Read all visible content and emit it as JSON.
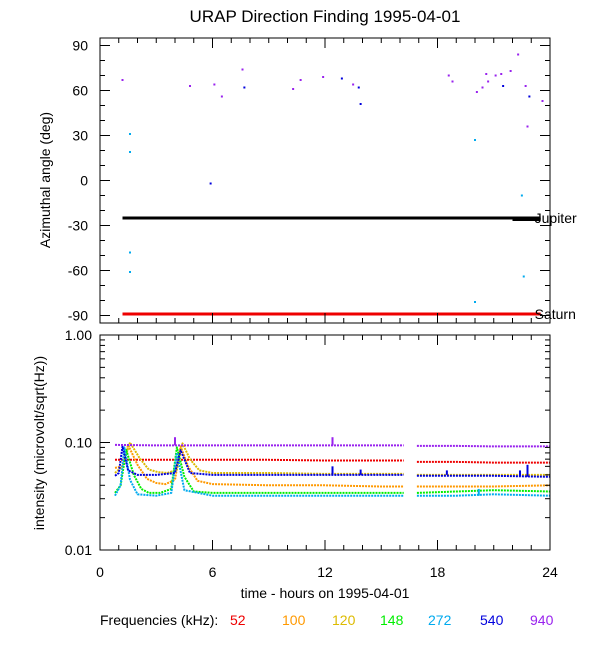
{
  "title": "URAP Direction Finding  1995-04-01",
  "xlabel": "time - hours on 1995-04-01",
  "freq_legend_label": "Frequencies (kHz):",
  "series_colors": {
    "52": "#ee0000",
    "100": "#ff9900",
    "120": "#ddbb00",
    "148": "#00ee00",
    "272": "#00aaee",
    "540": "#0000dd",
    "940": "#9922ee"
  },
  "chart_data": [
    {
      "type": "scatter",
      "xlim": [
        0,
        24
      ],
      "ylim": [
        -95,
        95
      ],
      "ylabel": "Azimuthal angle (deg)",
      "x_ticks": [
        0,
        6,
        12,
        18,
        24
      ],
      "y_ticks": [
        90,
        60,
        30,
        0,
        -30,
        -60,
        -90
      ],
      "y_tick_labels": [
        "90",
        "60",
        "30",
        "0",
        "-30",
        "-60",
        "-90"
      ],
      "reference_lines": [
        {
          "label": "Jupiter",
          "x": [
            1.2,
            23.5
          ],
          "y": [
            -25,
            -25
          ],
          "y_end": -26,
          "color": "#000000"
        },
        {
          "label": "Saturn",
          "x": [
            1.2,
            23.5
          ],
          "y": [
            -89,
            -89
          ],
          "color": "#ee0000"
        }
      ],
      "points": [
        {
          "x": 1.2,
          "y": 67,
          "f": "940"
        },
        {
          "x": 1.6,
          "y": 31,
          "f": "272"
        },
        {
          "x": 1.6,
          "y": 19,
          "f": "272"
        },
        {
          "x": 1.6,
          "y": -48,
          "f": "272"
        },
        {
          "x": 1.6,
          "y": -61,
          "f": "272"
        },
        {
          "x": 4.8,
          "y": 63,
          "f": "940"
        },
        {
          "x": 5.9,
          "y": -2,
          "f": "540"
        },
        {
          "x": 6.1,
          "y": 64,
          "f": "940"
        },
        {
          "x": 6.5,
          "y": 56,
          "f": "940"
        },
        {
          "x": 7.6,
          "y": 74,
          "f": "940"
        },
        {
          "x": 7.7,
          "y": 62,
          "f": "540"
        },
        {
          "x": 10.3,
          "y": 61,
          "f": "940"
        },
        {
          "x": 10.7,
          "y": 67,
          "f": "940"
        },
        {
          "x": 11.9,
          "y": 69,
          "f": "940"
        },
        {
          "x": 12.9,
          "y": 68,
          "f": "540"
        },
        {
          "x": 13.5,
          "y": 64,
          "f": "940"
        },
        {
          "x": 13.8,
          "y": 62,
          "f": "540"
        },
        {
          "x": 13.9,
          "y": 51,
          "f": "540"
        },
        {
          "x": 18.6,
          "y": 70,
          "f": "940"
        },
        {
          "x": 18.8,
          "y": 66,
          "f": "940"
        },
        {
          "x": 20.0,
          "y": 27,
          "f": "272"
        },
        {
          "x": 20.0,
          "y": -81,
          "f": "272"
        },
        {
          "x": 20.1,
          "y": 59,
          "f": "940"
        },
        {
          "x": 20.4,
          "y": 62,
          "f": "940"
        },
        {
          "x": 20.6,
          "y": 71,
          "f": "940"
        },
        {
          "x": 20.7,
          "y": 66,
          "f": "940"
        },
        {
          "x": 21.1,
          "y": 70,
          "f": "940"
        },
        {
          "x": 21.4,
          "y": 71,
          "f": "940"
        },
        {
          "x": 21.5,
          "y": 63,
          "f": "540"
        },
        {
          "x": 21.9,
          "y": 73,
          "f": "940"
        },
        {
          "x": 22.3,
          "y": 84,
          "f": "940"
        },
        {
          "x": 22.5,
          "y": -10,
          "f": "272"
        },
        {
          "x": 22.6,
          "y": -64,
          "f": "272"
        },
        {
          "x": 22.7,
          "y": 63,
          "f": "940"
        },
        {
          "x": 22.8,
          "y": 36,
          "f": "940"
        },
        {
          "x": 22.9,
          "y": 56,
          "f": "540"
        },
        {
          "x": 23.6,
          "y": 53,
          "f": "940"
        }
      ]
    },
    {
      "type": "line",
      "xlim": [
        0,
        24
      ],
      "ylim": [
        0.01,
        1.0
      ],
      "yscale": "log",
      "ylabel": "intensity (microvolt/sqrt(Hz))",
      "x_ticks": [
        0,
        6,
        12,
        18,
        24
      ],
      "x_tick_labels": [
        "0",
        "6",
        "12",
        "18",
        "24"
      ],
      "y_ticks": [
        1.0,
        0.1,
        0.01
      ],
      "y_tick_labels": [
        "1.00",
        "0.10",
        "0.01"
      ],
      "data_gap": [
        16.2,
        16.9
      ],
      "series": [
        {
          "name": "52",
          "x": [
            0.8,
            3,
            6,
            9,
            12,
            15,
            16.2,
            16.9,
            19,
            21,
            24
          ],
          "values": [
            0.069,
            0.069,
            0.069,
            0.069,
            0.068,
            0.068,
            0.068,
            0.066,
            0.066,
            0.065,
            0.065
          ]
        },
        {
          "name": "100",
          "x": [
            0.8,
            1.2,
            1.5,
            2.0,
            2.5,
            3.0,
            3.5,
            4.0,
            4.3,
            4.7,
            5.2,
            6,
            9,
            12,
            15,
            16.2,
            16.9,
            19,
            21,
            24
          ],
          "values": [
            0.058,
            0.06,
            0.095,
            0.062,
            0.046,
            0.042,
            0.041,
            0.045,
            0.092,
            0.06,
            0.044,
            0.041,
            0.04,
            0.04,
            0.039,
            0.039,
            0.039,
            0.039,
            0.039,
            0.04
          ]
        },
        {
          "name": "120",
          "x": [
            0.8,
            1.2,
            1.6,
            2.1,
            2.6,
            3.1,
            3.6,
            4.1,
            4.4,
            4.8,
            5.3,
            6,
            9,
            12,
            15,
            16.2,
            16.9,
            19,
            21,
            24
          ],
          "values": [
            0.052,
            0.06,
            0.1,
            0.072,
            0.056,
            0.053,
            0.052,
            0.056,
            0.098,
            0.07,
            0.055,
            0.052,
            0.052,
            0.051,
            0.051,
            0.051,
            0.05,
            0.05,
            0.05,
            0.05
          ]
        },
        {
          "name": "148",
          "x": [
            0.8,
            1.1,
            1.4,
            1.8,
            2.2,
            2.6,
            3.2,
            3.8,
            4.1,
            4.5,
            5.0,
            6,
            9,
            12,
            15,
            16.2,
            16.9,
            19,
            21,
            24
          ],
          "values": [
            0.034,
            0.04,
            0.085,
            0.05,
            0.037,
            0.034,
            0.034,
            0.037,
            0.09,
            0.048,
            0.035,
            0.034,
            0.034,
            0.034,
            0.034,
            0.034,
            0.034,
            0.035,
            0.036,
            0.035
          ]
        },
        {
          "name": "272",
          "x": [
            0.8,
            1.1,
            1.3,
            1.6,
            2.0,
            3.0,
            3.8,
            4.1,
            4.5,
            6,
            9,
            12,
            15,
            16.2,
            16.9,
            19,
            21,
            24
          ],
          "values": [
            0.032,
            0.04,
            0.09,
            0.045,
            0.033,
            0.032,
            0.034,
            0.08,
            0.036,
            0.032,
            0.032,
            0.032,
            0.032,
            0.032,
            0.032,
            0.032,
            0.033,
            0.032
          ]
        },
        {
          "name": "540",
          "x": [
            0.8,
            1.0,
            1.2,
            1.5,
            2.0,
            3.0,
            4.0,
            4.3,
            4.8,
            6,
            9,
            12,
            15,
            16.2,
            16.9,
            19,
            21,
            24
          ],
          "values": [
            0.049,
            0.052,
            0.092,
            0.055,
            0.05,
            0.05,
            0.052,
            0.085,
            0.052,
            0.05,
            0.05,
            0.05,
            0.05,
            0.05,
            0.049,
            0.049,
            0.049,
            0.048
          ]
        },
        {
          "name": "940",
          "x": [
            0.8,
            3,
            6,
            9,
            12,
            15,
            16.2,
            16.9,
            19,
            21,
            24
          ],
          "values": [
            0.095,
            0.094,
            0.094,
            0.094,
            0.094,
            0.094,
            0.094,
            0.093,
            0.093,
            0.092,
            0.092
          ]
        }
      ],
      "spikes": [
        {
          "x": 4.0,
          "y": [
            0.094,
            0.112
          ],
          "f": "940"
        },
        {
          "x": 12.4,
          "y": [
            0.094,
            0.112
          ],
          "f": "940"
        },
        {
          "x": 12.4,
          "y": [
            0.05,
            0.06
          ],
          "f": "540"
        },
        {
          "x": 13.9,
          "y": [
            0.05,
            0.056
          ],
          "f": "540"
        },
        {
          "x": 18.5,
          "y": [
            0.05,
            0.055
          ],
          "f": "540"
        },
        {
          "x": 20.2,
          "y": [
            0.032,
            0.037
          ],
          "f": "272"
        },
        {
          "x": 22.4,
          "y": [
            0.049,
            0.055
          ],
          "f": "540"
        },
        {
          "x": 22.8,
          "y": [
            0.048,
            0.062
          ],
          "f": "540"
        }
      ]
    }
  ]
}
